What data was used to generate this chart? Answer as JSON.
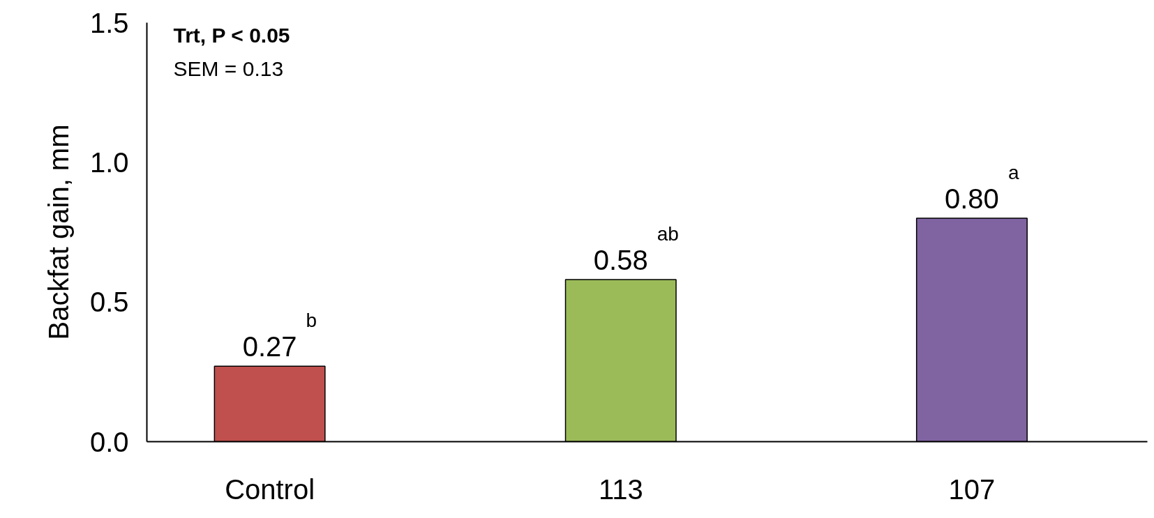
{
  "chart_data": {
    "type": "bar",
    "ylabel": "Backfat gain, mm",
    "categories": [
      "Control",
      "113",
      "107"
    ],
    "values": [
      0.27,
      0.58,
      0.8
    ],
    "colors": [
      "#c0504d",
      "#9bbb59",
      "#8064a2"
    ],
    "value_labels": [
      "0.27",
      "0.58",
      "0.80"
    ],
    "ylim": [
      0,
      1.5
    ],
    "yticks": [
      {
        "value": 0,
        "label": "0.0"
      },
      {
        "value": 0.5,
        "label": "0.5"
      },
      {
        "value": 1.0,
        "label": "1.0"
      },
      {
        "value": 1.5,
        "label": "1.5"
      }
    ],
    "annotations": [
      "Trt, P < 0.05",
      "SEM = 0.13",
      {
        "text": "b",
        "x": "Control",
        "y": 0.27
      },
      {
        "text": "ab",
        "x": "113",
        "y": 0.58
      },
      {
        "text": "a",
        "x": "107",
        "y": 0.8
      }
    ],
    "grid": false
  }
}
